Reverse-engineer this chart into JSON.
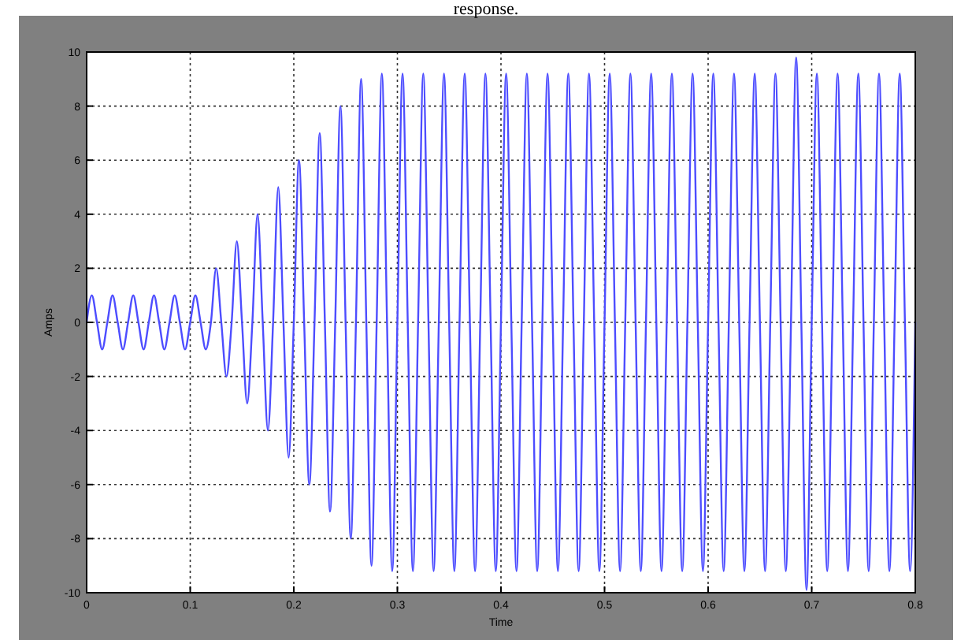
{
  "chart_data": {
    "type": "line",
    "xlabel": "Time",
    "ylabel": "Amps",
    "annotations": [
      "response."
    ],
    "xlim": [
      0,
      0.8
    ],
    "ylim": [
      -10,
      10
    ],
    "xticks": [
      0,
      0.1,
      0.2,
      0.3,
      0.4,
      0.5,
      0.6,
      0.7,
      0.8
    ],
    "yticks": [
      -10,
      -8,
      -6,
      -4,
      -2,
      0,
      2,
      4,
      6,
      8,
      10
    ],
    "grid": true,
    "marker": "none",
    "line_style": "solid",
    "x": [
      0,
      0.005,
      0.01,
      0.015,
      0.02,
      0.025,
      0.03,
      0.035,
      0.04,
      0.045,
      0.05,
      0.055,
      0.06,
      0.065,
      0.07,
      0.075,
      0.08,
      0.085,
      0.09,
      0.095,
      0.1,
      0.105,
      0.11,
      0.115,
      0.12,
      0.125,
      0.13,
      0.135,
      0.14,
      0.145,
      0.15,
      0.155,
      0.16,
      0.165,
      0.17,
      0.175,
      0.18,
      0.185,
      0.19,
      0.195,
      0.2,
      0.205,
      0.21,
      0.215,
      0.22,
      0.225,
      0.23,
      0.235,
      0.24,
      0.245,
      0.25,
      0.255,
      0.26,
      0.265,
      0.27,
      0.275,
      0.28,
      0.285,
      0.29,
      0.295,
      0.3,
      0.305,
      0.31,
      0.315,
      0.32,
      0.325,
      0.33,
      0.335,
      0.34,
      0.345,
      0.35,
      0.355,
      0.36,
      0.365,
      0.37,
      0.375,
      0.38,
      0.385,
      0.39,
      0.395,
      0.4,
      0.405,
      0.41,
      0.415,
      0.42,
      0.425,
      0.43,
      0.435,
      0.44,
      0.445,
      0.45,
      0.455,
      0.46,
      0.465,
      0.47,
      0.475,
      0.48,
      0.485,
      0.49,
      0.495,
      0.5,
      0.505,
      0.51,
      0.515,
      0.52,
      0.525,
      0.53,
      0.535,
      0.54,
      0.545,
      0.55,
      0.555,
      0.56,
      0.565,
      0.57,
      0.575,
      0.58,
      0.585,
      0.59,
      0.595,
      0.6,
      0.605,
      0.61,
      0.615,
      0.62,
      0.625,
      0.63,
      0.635,
      0.64,
      0.645,
      0.65,
      0.655,
      0.66,
      0.665,
      0.67,
      0.675,
      0.68,
      0.685,
      0.69,
      0.695,
      0.7,
      0.705,
      0.71,
      0.715,
      0.72,
      0.725,
      0.73,
      0.735,
      0.74,
      0.745,
      0.75,
      0.755,
      0.76,
      0.765,
      0.77,
      0.775,
      0.78,
      0.785,
      0.79,
      0.795,
      0.8
    ],
    "series": [
      {
        "color": "#4d4dff",
        "values": [
          0,
          1,
          0,
          -1,
          0,
          1,
          0,
          -1,
          0,
          1,
          0,
          -1,
          0,
          1,
          0,
          -1,
          0,
          1,
          0,
          -1,
          0,
          1,
          0,
          -1,
          0,
          2,
          0,
          -2,
          0,
          3,
          0,
          -3,
          0,
          4,
          0,
          -4,
          0,
          5,
          0,
          -5,
          0,
          6,
          0,
          -6,
          0,
          7,
          0,
          -7,
          0,
          8,
          0,
          -8,
          0,
          9,
          0,
          -9,
          0,
          9.2,
          0,
          -9.2,
          0,
          9.2,
          0,
          -9.2,
          0,
          9.2,
          0,
          -9.2,
          0,
          9.2,
          0,
          -9.2,
          0,
          9.2,
          0,
          -9.2,
          0,
          9.2,
          0,
          -9.2,
          0,
          9.2,
          0,
          -9.2,
          0,
          9.2,
          0,
          -9.2,
          0,
          9.2,
          0,
          -9.2,
          0,
          9.2,
          0,
          -9.2,
          0,
          9.2,
          0,
          -9.2,
          0,
          9.2,
          0,
          -9.2,
          0,
          9.2,
          0,
          -9.2,
          0,
          9.2,
          0,
          -9.2,
          0,
          9.2,
          0,
          -9.2,
          0,
          9.2,
          0,
          -9.2,
          0,
          9.2,
          0,
          -9.2,
          0,
          9.2,
          0,
          -9.2,
          0,
          9.2,
          0,
          -9.2,
          0,
          9.2,
          0,
          -9.2,
          0,
          9.8,
          0,
          -9.9,
          0,
          9.2,
          0,
          -9.2,
          0,
          9.2,
          0,
          -9.2,
          0,
          9.2,
          0,
          -9.2,
          0,
          9.2,
          0,
          -9.2,
          0,
          9.2,
          0,
          -9.2,
          0
        ]
      }
    ]
  }
}
